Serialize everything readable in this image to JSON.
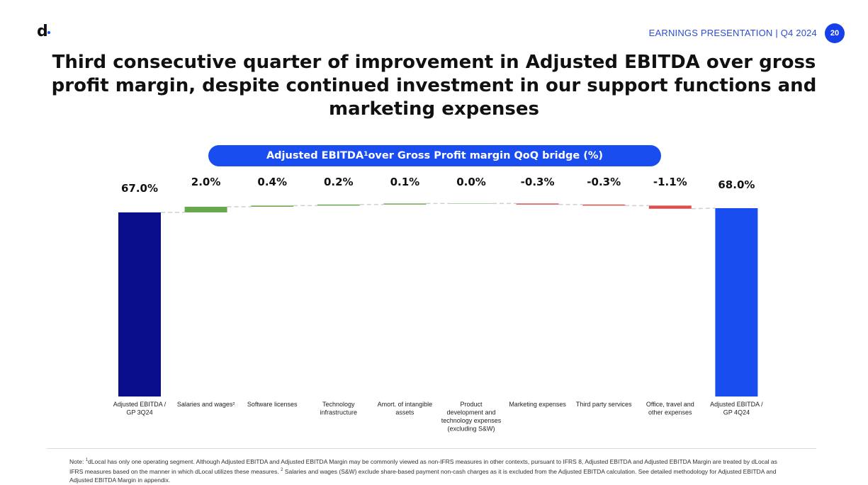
{
  "header": {
    "logo_text": "d",
    "label": "EARNINGS PRESENTATION | Q4 2024",
    "page_number": "20",
    "accent_color": "#1740ea"
  },
  "title": "Third consecutive quarter of improvement in Adjusted EBITDA over gross profit margin, despite  continued investment in our support functions and marketing expenses",
  "chart_title": {
    "before_sup": "Adjusted EBITDA",
    "sup": "1",
    "after_sup": " over Gross Profit margin QoQ bridge (%)"
  },
  "chart_data": {
    "type": "waterfall",
    "categories": [
      "Adjusted EBITDA / GP 3Q24",
      "Salaries and wages²",
      "Software licenses",
      "Technology infrastructure",
      "Amort. of intangible assets",
      "Product development and technology expenses (excluding S&W)",
      "Marketing expenses",
      "Third party services",
      "Office, travel and other expenses",
      "Adjusted EBITDA / GP 4Q24"
    ],
    "category_lines": [
      [
        "Adjusted EBITDA /",
        "GP 3Q24"
      ],
      [
        "Salaries and wages²"
      ],
      [
        "Software licenses"
      ],
      [
        "Technology",
        "infrastructure"
      ],
      [
        "Amort. of intangible",
        "assets"
      ],
      [
        "Product",
        "development and",
        "technology expenses",
        "(excluding S&W)"
      ],
      [
        "Marketing expenses"
      ],
      [
        "Third party services"
      ],
      [
        "Office, travel and",
        "other expenses"
      ],
      [
        "Adjusted EBITDA /",
        "GP 4Q24"
      ]
    ],
    "kinds": [
      "total",
      "delta",
      "delta",
      "delta",
      "delta",
      "delta",
      "delta",
      "delta",
      "delta",
      "total"
    ],
    "values": [
      67.0,
      2.0,
      0.4,
      0.2,
      0.1,
      0.0,
      -0.3,
      -0.3,
      -1.1,
      68.0
    ],
    "labels": [
      "67.0%",
      "2.0%",
      "0.4%",
      "0.2%",
      "0.1%",
      "0.0%",
      "-0.3%",
      "-0.3%",
      "-1.1%",
      "68.0%"
    ],
    "ylim": [
      0,
      70
    ],
    "colors": {
      "start_total": "#0b0e8c",
      "end_total": "#1a4df0",
      "increase": "#6aa84f",
      "decrease": "#e04d4d",
      "connector": "#cfcfcf"
    },
    "grid": false,
    "legend": "none"
  },
  "note": {
    "lead": "Note: ",
    "sup1": "1",
    "part1": "dLocal has only one operating segment. Although Adjusted EBITDA and Adjusted EBITDA Margin may be commonly viewed as non-IFRS measures in other contexts, pursuant to IFRS 8, Adjusted EBITDA and Adjusted EBITDA Margin are treated by dLocal as IFRS measures based on the manner in which dLocal utilizes these measures. ",
    "sup2": "2",
    "part2": " Salaries and wages (S&W) exclude share-based payment non-cash charges as it is excluded from the Adjusted EBITDA calculation. See detailed methodology for Adjusted EBITDA and Adjusted EBITDA Margin in appendix."
  }
}
